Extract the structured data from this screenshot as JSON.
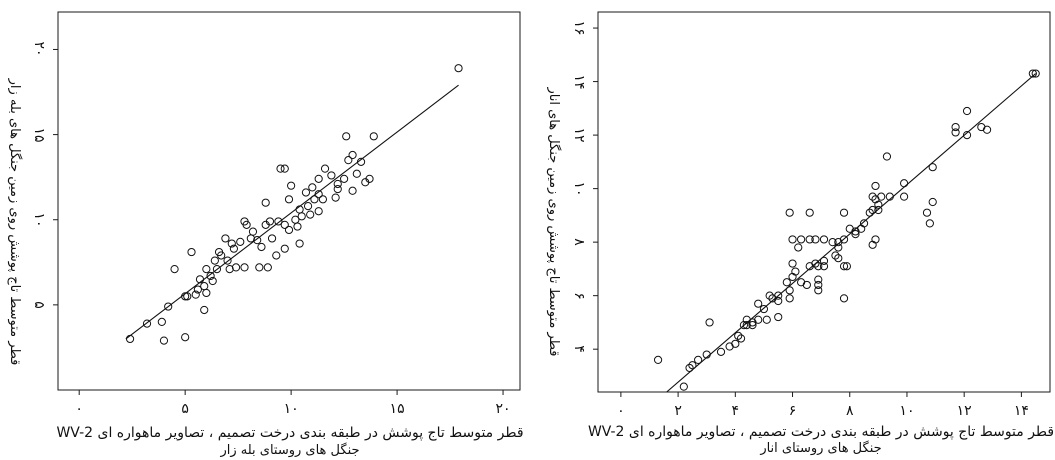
{
  "chart_data": [
    {
      "type": "scatter",
      "marker": "open-circle",
      "color": "#111111",
      "grid": false,
      "xlabel": "قطر متوسط تاج پوشش در طبقه بندی درخت تصمیم ، تصاویر ماهواره ای WV-2",
      "xlabel_line2": "جنگل های روستای بله زار",
      "ylabel": "قطر متوسط تاج پوشش روی زمین جنگل های بله زار",
      "xlim": [
        -1,
        20.8
      ],
      "ylim": [
        0,
        22.2
      ],
      "xticks": [
        0,
        5,
        10,
        15,
        20
      ],
      "xtick_labels": [
        "۰",
        "۵",
        "۱۰",
        "۱۵",
        "۲۰"
      ],
      "yticks": [
        5,
        10,
        15,
        20
      ],
      "ytick_labels": [
        "۵",
        "۱۰",
        "۱۵",
        "۲۰"
      ],
      "fit_line": {
        "x": [
          2.2,
          17.9
        ],
        "y": [
          3.0,
          17.9
        ]
      },
      "x": [
        17.9,
        12.6,
        13.9,
        9.5,
        9.7,
        11.6,
        12.9,
        12.7,
        13.3,
        10.0,
        11.3,
        12.2,
        12.5,
        11.9,
        13.1,
        13.5,
        13.7,
        10.7,
        11.1,
        11.3,
        11.5,
        12.1,
        12.9,
        8.8,
        9.9,
        10.4,
        10.8,
        10.9,
        11.3,
        9.0,
        9.4,
        9.7,
        9.9,
        10.2,
        10.3,
        8.8,
        7.8,
        7.9,
        8.1,
        8.4,
        8.6,
        6.9,
        7.2,
        7.3,
        7.6,
        5.3,
        6.6,
        6.4,
        6.7,
        7.0,
        8.5,
        8.9,
        7.4,
        7.8,
        6.0,
        6.2,
        6.5,
        4.5,
        5.7,
        5.9,
        5.6,
        6.0,
        5.1,
        5.5,
        5.9,
        4.2,
        5.0,
        3.2,
        3.9,
        2.4,
        4.0,
        5.0,
        6.3,
        7.1,
        9.3,
        9.7,
        9.1,
        10.4,
        10.5,
        8.2,
        12.2,
        11.0
      ],
      "y": [
        18.9,
        14.9,
        14.9,
        13.0,
        13.0,
        13.0,
        13.8,
        13.5,
        13.4,
        12.0,
        12.4,
        12.1,
        12.4,
        12.6,
        12.7,
        12.2,
        12.4,
        11.6,
        11.2,
        11.5,
        11.2,
        11.3,
        11.7,
        11.0,
        11.2,
        10.6,
        10.8,
        10.3,
        10.5,
        9.9,
        9.9,
        9.7,
        9.4,
        10.0,
        9.6,
        9.7,
        9.9,
        9.7,
        8.9,
        8.8,
        8.4,
        8.9,
        8.6,
        8.3,
        8.7,
        8.1,
        8.1,
        7.6,
        7.9,
        7.6,
        7.2,
        7.2,
        7.2,
        7.2,
        7.1,
        6.7,
        7.1,
        7.1,
        6.5,
        6.1,
        5.9,
        5.7,
        5.5,
        5.6,
        4.7,
        4.9,
        3.1,
        3.9,
        4.0,
        3.0,
        2.9,
        5.5,
        6.4,
        7.1,
        7.9,
        8.3,
        8.9,
        8.6,
        10.2,
        9.3,
        11.8,
        11.9
      ]
    },
    {
      "type": "scatter",
      "marker": "open-circle",
      "color": "#111111",
      "grid": false,
      "xlabel": "قطر متوسط تاج پوشش در طبقه بندی درخت تصمیم ، تصاویر ماهواره ای WV-2",
      "xlabel_line2": "جنگل های روستای انار",
      "ylabel": "قطر متوسط تاج پوشش روی زمین جنگل های انار",
      "xlim": [
        -0.8,
        15
      ],
      "ylim": [
        2.4,
        16.6
      ],
      "xticks": [
        0,
        2,
        4,
        6,
        8,
        10,
        12,
        14
      ],
      "xtick_labels": [
        "۰",
        "۲",
        "۴",
        "۶",
        "۸",
        "۱۰",
        "۱۲",
        "۱۴"
      ],
      "yticks": [
        4,
        6,
        8,
        10,
        12,
        14,
        16
      ],
      "ytick_labels": [
        "۴",
        "۶",
        "۸",
        "۱۰",
        "۱۲",
        "۱۴",
        "۱۶"
      ],
      "fit_line": {
        "x": [
          1.6,
          14.5
        ],
        "y": [
          2.4,
          14.3
        ]
      },
      "x": [
        14.4,
        14.5,
        12.1,
        12.6,
        11.7,
        11.7,
        12.1,
        12.8,
        9.3,
        9.9,
        10.9,
        10.9,
        9.9,
        10.7,
        10.8,
        7.8,
        8.7,
        8.8,
        9.1,
        9.4,
        8.9,
        9.0,
        8.8,
        9.0,
        8.5,
        8.4,
        8.2,
        8.0,
        8.2,
        7.6,
        7.8,
        7.4,
        6.8,
        7.1,
        6.0,
        6.3,
        6.6,
        6.2,
        7.6,
        7.5,
        7.6,
        7.1,
        6.9,
        7.1,
        7.8,
        7.9,
        8.8,
        8.9,
        6.8,
        6.6,
        6.0,
        6.1,
        6.0,
        6.9,
        6.9,
        6.3,
        6.5,
        5.8,
        5.9,
        5.5,
        5.2,
        5.3,
        5.5,
        4.8,
        5.0,
        5.9,
        5.5,
        6.9,
        7.8,
        5.1,
        4.8,
        4.6,
        4.6,
        4.4,
        4.3,
        4.4,
        4.1,
        4.2,
        3.8,
        4.0,
        3.5,
        3.1,
        3.0,
        2.7,
        2.5,
        2.4,
        2.2,
        1.3,
        5.9,
        6.6,
        8.9
      ],
      "y": [
        14.3,
        14.3,
        12.9,
        12.3,
        12.3,
        12.1,
        12.0,
        12.2,
        11.2,
        10.2,
        10.8,
        9.5,
        9.7,
        9.1,
        8.7,
        9.1,
        9.1,
        9.7,
        9.7,
        9.7,
        9.6,
        9.4,
        9.2,
        9.2,
        8.7,
        8.5,
        8.4,
        8.5,
        8.3,
        8.0,
        8.1,
        8.0,
        8.1,
        8.1,
        8.1,
        8.1,
        8.1,
        7.8,
        7.8,
        7.5,
        7.4,
        7.3,
        7.1,
        7.1,
        7.1,
        7.1,
        7.9,
        8.1,
        7.2,
        7.1,
        7.2,
        6.9,
        6.7,
        6.6,
        6.4,
        6.5,
        6.4,
        6.5,
        6.2,
        6.0,
        6.0,
        5.9,
        5.8,
        5.7,
        5.5,
        5.9,
        5.2,
        6.2,
        5.9,
        5.1,
        5.1,
        5.0,
        4.9,
        5.1,
        4.9,
        4.9,
        4.5,
        4.4,
        4.1,
        4.2,
        3.9,
        5.0,
        3.8,
        3.6,
        3.4,
        3.3,
        2.6,
        3.6,
        9.1,
        9.1,
        10.1
      ]
    }
  ]
}
